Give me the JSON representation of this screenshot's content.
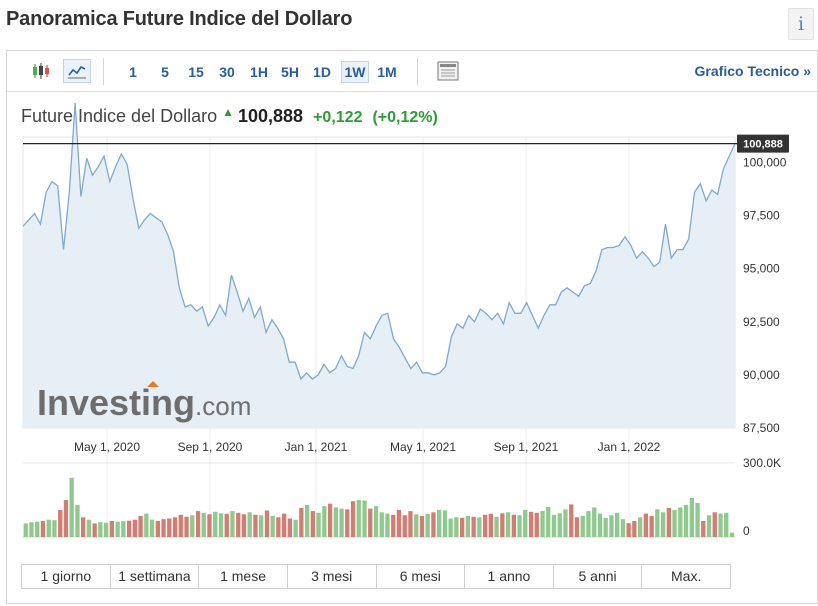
{
  "page": {
    "title": "Panoramica Future Indice del Dollaro",
    "info_label": "i"
  },
  "toolbar": {
    "periods": [
      "1",
      "5",
      "15",
      "30",
      "1H",
      "5H",
      "1D",
      "1W",
      "1M"
    ],
    "active_period": "1W",
    "technical_link": "Grafico Tecnico »"
  },
  "quote": {
    "name": "Future Indice del Dollaro",
    "last": "100,888",
    "change": "+0,122",
    "change_pct": "(+0,12%)"
  },
  "watermark": {
    "brand": "Investing",
    "suffix": ".com"
  },
  "colors": {
    "line": "#7fa9d0",
    "area": "#e6eff6",
    "up": "#8ec98e",
    "down": "#d47b72",
    "price_tag": "#333333",
    "positive": "#2e9d36"
  },
  "range_buttons": [
    "1 giorno",
    "1 settimana",
    "1 mese",
    "3 mesi",
    "6 mesi",
    "1 anno",
    "5 anni",
    "Max."
  ],
  "chart_data": [
    {
      "type": "area",
      "x_tick_labels": [
        "May 1, 2020",
        "Sep 1, 2020",
        "Jan 1, 2021",
        "May 1, 2021",
        "Sep 1, 2021",
        "Jan 1, 2022"
      ],
      "y_tick_labels": [
        "100,000",
        "97,500",
        "95,000",
        "92,500",
        "90,000",
        "87,500"
      ],
      "y_ticks": [
        100000,
        97500,
        95000,
        92500,
        90000,
        87500
      ],
      "ylim": [
        87500,
        101200
      ],
      "current_price": 100.888,
      "current_price_label": "100,888",
      "series": [
        {
          "values": [
            97.0,
            97.3,
            97.6,
            97.1,
            98.6,
            99.1,
            98.9,
            95.9,
            98.6,
            102.8,
            98.4,
            100.2,
            99.4,
            99.8,
            100.3,
            99.1,
            99.8,
            100.4,
            99.9,
            98.3,
            96.9,
            97.3,
            97.6,
            97.4,
            97.2,
            96.6,
            95.8,
            94.1,
            93.2,
            93.3,
            93.0,
            93.2,
            92.3,
            92.7,
            93.3,
            92.8,
            94.7,
            93.9,
            93.0,
            93.6,
            92.7,
            93.2,
            92.0,
            92.6,
            92.2,
            91.7,
            90.6,
            90.6,
            89.8,
            90.1,
            89.8,
            90.0,
            90.5,
            90.1,
            90.3,
            90.9,
            90.4,
            90.3,
            90.9,
            92.0,
            91.7,
            92.3,
            92.8,
            92.9,
            91.7,
            91.3,
            90.8,
            90.3,
            90.6,
            90.1,
            90.1,
            90.0,
            90.1,
            90.4,
            91.8,
            92.4,
            92.2,
            92.8,
            92.5,
            93.1,
            92.9,
            92.6,
            92.9,
            92.4,
            93.4,
            92.9,
            92.9,
            93.4,
            92.8,
            92.2,
            92.8,
            93.3,
            93.3,
            93.9,
            94.1,
            93.9,
            93.7,
            94.2,
            94.3,
            94.9,
            95.9,
            96.0,
            96.0,
            96.1,
            96.5,
            96.1,
            95.5,
            95.8,
            95.5,
            95.1,
            95.3,
            97.1,
            95.5,
            95.9,
            95.9,
            96.4,
            98.6,
            99.0,
            98.2,
            98.7,
            98.5,
            99.7,
            100.3,
            100.888
          ]
        }
      ]
    },
    {
      "type": "bar",
      "y_tick_labels": [
        "300.0K",
        "0"
      ],
      "ylim": [
        0,
        300000
      ],
      "series": [
        {
          "values": [
            55000,
            60000,
            62000,
            65000,
            70000,
            68000,
            110000,
            150000,
            240000,
            130000,
            80000,
            70000,
            55000,
            60000,
            58000,
            65000,
            62000,
            64000,
            66000,
            70000,
            85000,
            95000,
            70000,
            65000,
            72000,
            75000,
            80000,
            90000,
            82000,
            88000,
            105000,
            98000,
            92000,
            102000,
            96000,
            94000,
            105000,
            98000,
            92000,
            100000,
            90000,
            88000,
            108000,
            85000,
            80000,
            95000,
            75000,
            70000,
            118000,
            130000,
            105000,
            98000,
            125000,
            135000,
            120000,
            115000,
            112000,
            145000,
            150000,
            148000,
            115000,
            125000,
            100000,
            95000,
            90000,
            110000,
            88000,
            105000,
            92000,
            85000,
            94000,
            100000,
            110000,
            108000,
            75000,
            80000,
            78000,
            85000,
            82000,
            80000,
            90000,
            94000,
            82000,
            96000,
            100000,
            90000,
            88000,
            110000,
            102000,
            98000,
            106000,
            122000,
            90000,
            96000,
            112000,
            132000,
            80000,
            85000,
            105000,
            120000,
            95000,
            78000,
            88000,
            98000,
            72000,
            56000,
            65000,
            80000,
            95000,
            85000,
            112000,
            100000,
            118000,
            110000,
            120000,
            130000,
            158000,
            138000,
            65000,
            88000,
            100000,
            95000,
            98000,
            18000
          ]
        }
      ]
    }
  ]
}
